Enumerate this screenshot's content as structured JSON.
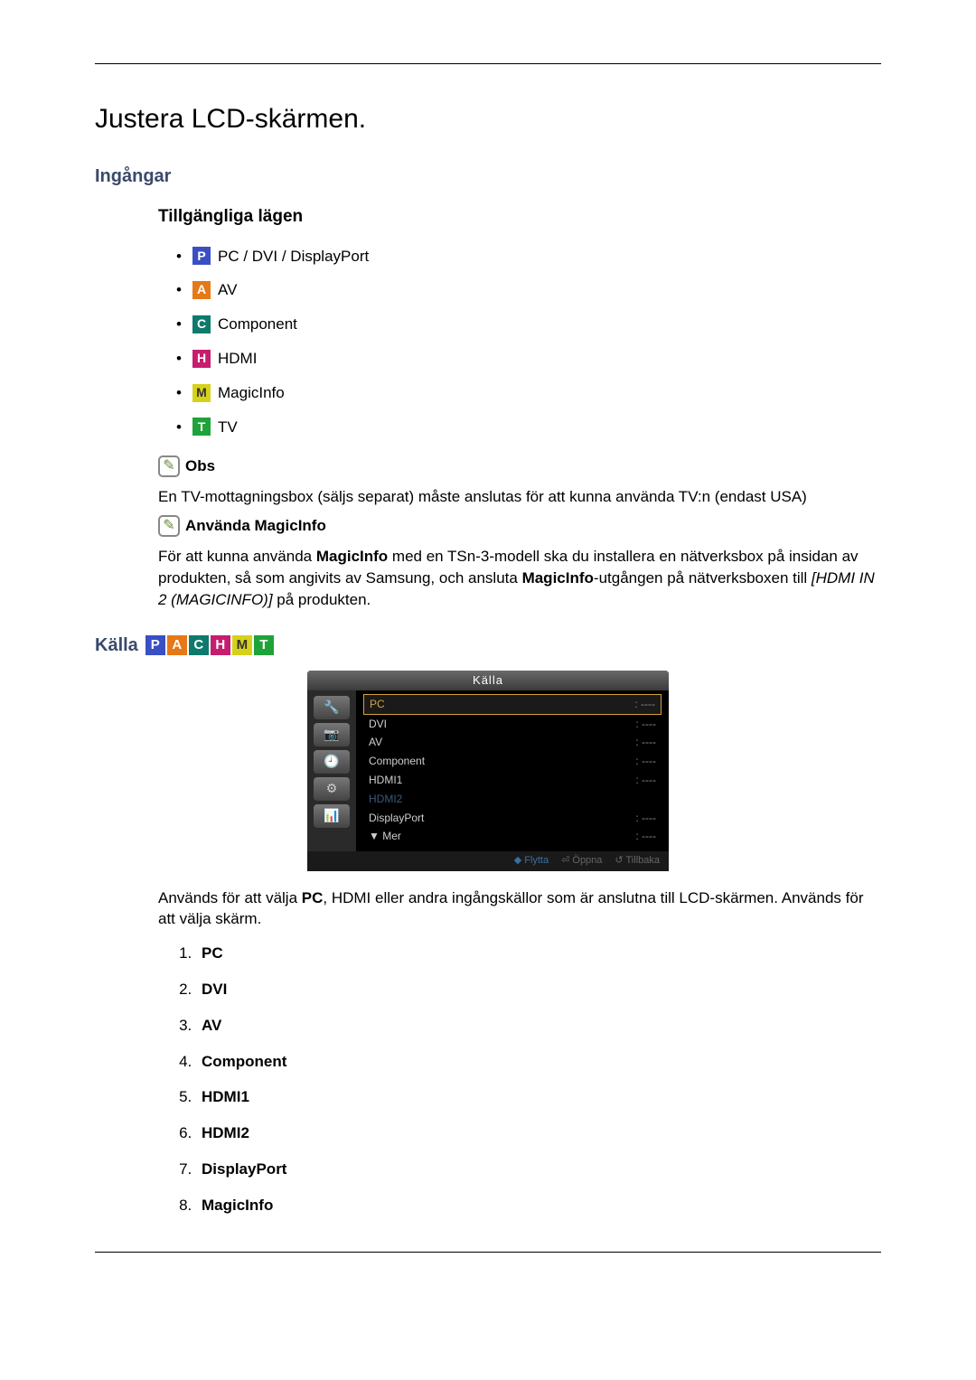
{
  "title": "Justera LCD-skärmen.",
  "section_inputs": "Ingångar",
  "available_modes_heading": "Tillgängliga lägen",
  "modes": [
    {
      "letter": "P",
      "cls": "icon-p",
      "label": "PC / DVI / DisplayPort"
    },
    {
      "letter": "A",
      "cls": "icon-a",
      "label": "AV"
    },
    {
      "letter": "C",
      "cls": "icon-c",
      "label": "Component"
    },
    {
      "letter": "H",
      "cls": "icon-h",
      "label": "HDMI"
    },
    {
      "letter": "M",
      "cls": "icon-m",
      "label": "MagicInfo"
    },
    {
      "letter": "T",
      "cls": "icon-t",
      "label": "TV"
    }
  ],
  "obs_label": "Obs",
  "obs_text": "En TV-mottagningsbox (säljs separat) måste anslutas för att kunna använda TV:n (endast USA)",
  "magicinfo_label": "Använda MagicInfo",
  "magicinfo_text_1": "För att kunna använda ",
  "magicinfo_bold_1": "MagicInfo",
  "magicinfo_text_2": " med en TSn-3-modell ska du installera en nätverksbox på insidan av produkten, så som angivits av Samsung, och ansluta ",
  "magicinfo_bold_2": "MagicInfo",
  "magicinfo_text_3": "-utgången på nätverksboxen till ",
  "magicinfo_italic": "[HDMI IN 2 (MAGICINFO)]",
  "magicinfo_text_4": " på produkten.",
  "kalla_heading": "Källa",
  "kalla_icons": [
    {
      "letter": "P",
      "cls": "icon-p"
    },
    {
      "letter": "A",
      "cls": "icon-a"
    },
    {
      "letter": "C",
      "cls": "icon-c"
    },
    {
      "letter": "H",
      "cls": "icon-h"
    },
    {
      "letter": "M",
      "cls": "icon-m"
    },
    {
      "letter": "T",
      "cls": "icon-t"
    }
  ],
  "osd": {
    "title": "Källa",
    "side_glyphs": [
      "🔧",
      "📷",
      "🕘",
      "⚙",
      "📊"
    ],
    "rows": [
      {
        "label": "PC",
        "val": ": ----",
        "sel": true
      },
      {
        "label": "DVI",
        "val": ": ----"
      },
      {
        "label": "AV",
        "val": ": ----"
      },
      {
        "label": "Component",
        "val": ": ----"
      },
      {
        "label": "HDMI1",
        "val": ": ----"
      },
      {
        "label": "HDMI2",
        "val": "",
        "dim": true
      },
      {
        "label": "DisplayPort",
        "val": ": ----"
      },
      {
        "label": "▼ Mer",
        "val": ": ----"
      }
    ],
    "foot": [
      "◆ Flytta",
      "⏎ Öppna",
      "↺ Tillbaka"
    ]
  },
  "usage_text_1": "Används för att välja ",
  "usage_bold": "PC",
  "usage_text_2": ", HDMI eller andra ingångskällor som är anslutna till LCD-skärmen. Används för att välja skärm.",
  "sources": [
    "PC",
    "DVI",
    "AV",
    "Component",
    "HDMI1",
    "HDMI2",
    "DisplayPort",
    "MagicInfo"
  ]
}
